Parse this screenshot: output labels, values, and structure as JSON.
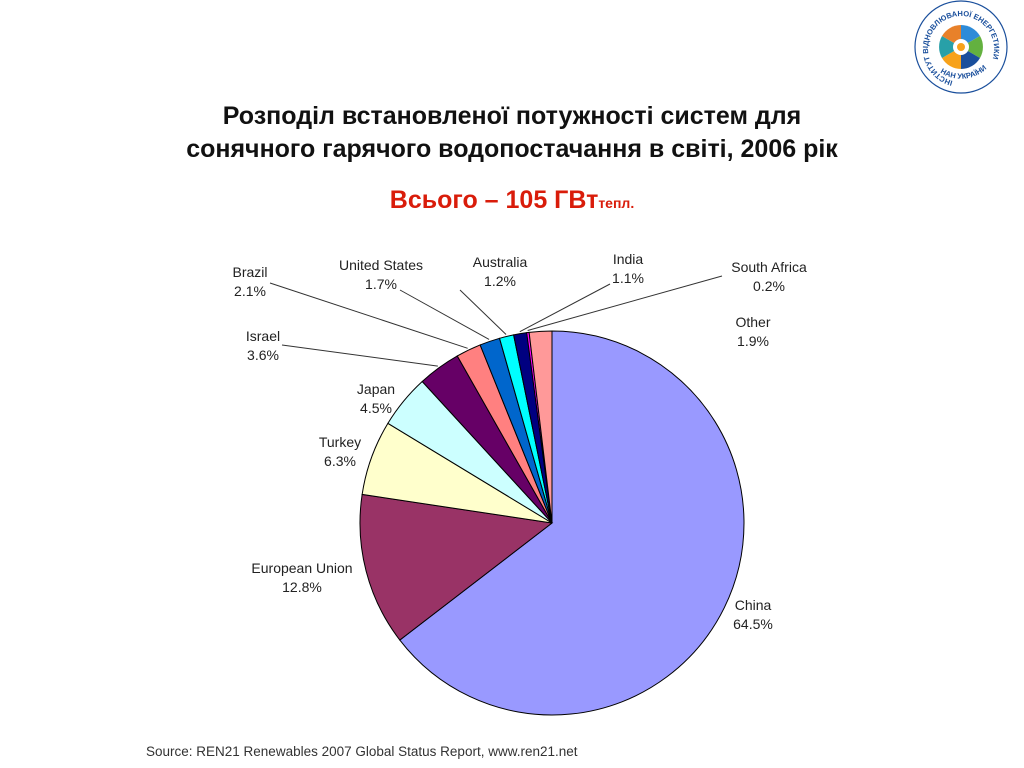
{
  "title": {
    "line1": "Розподіл встановленої потужності систем для",
    "line2": "сонячного гарячого водопостачання  в світі, 2006 рік"
  },
  "total": {
    "main": "Всього – 105 ГВт",
    "sub": "тепл."
  },
  "source": "Source: REN21 Renewables 2007 Global Status Report, www.ren21.net",
  "logo": {
    "ring_text": "ІНСТИТУТ ВІДНОВЛЮВАНОЇ ЕНЕРГЕТИКИ",
    "bottom_text": "НАН УКРАЇНИ"
  },
  "chart_data": {
    "type": "pie",
    "title": "Розподіл встановленої потужності систем для сонячного гарячого водопостачання  в світі, 2006 рік",
    "start": "top, clockwise",
    "slices": [
      {
        "label": "China",
        "value": 64.5,
        "display": "64.5%",
        "color": "#9999ff"
      },
      {
        "label": "European Union",
        "value": 12.8,
        "display": "12.8%",
        "color": "#993366"
      },
      {
        "label": "Turkey",
        "value": 6.3,
        "display": "6.3%",
        "color": "#ffffcc"
      },
      {
        "label": "Japan",
        "value": 4.5,
        "display": "4.5%",
        "color": "#ccffff"
      },
      {
        "label": "Israel",
        "value": 3.6,
        "display": "3.6%",
        "color": "#660066"
      },
      {
        "label": "Brazil",
        "value": 2.1,
        "display": "2.1%",
        "color": "#ff8080"
      },
      {
        "label": "United States",
        "value": 1.7,
        "display": "1.7%",
        "color": "#0066cc"
      },
      {
        "label": "Australia",
        "value": 1.2,
        "display": "1.2%",
        "color": "#00ffff"
      },
      {
        "label": "India",
        "value": 1.1,
        "display": "1.1%",
        "color": "#000080"
      },
      {
        "label": "South Africa",
        "value": 0.2,
        "display": "0.2%",
        "color": "#ff00ff"
      },
      {
        "label": "Other",
        "value": 1.9,
        "display": "1.9%",
        "color": "#ff9999"
      }
    ]
  }
}
